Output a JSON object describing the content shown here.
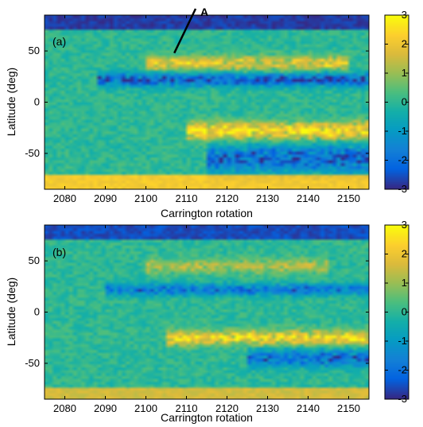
{
  "chart_data": [
    {
      "type": "heatmap",
      "panel_label": "(a)",
      "annotation": "A",
      "xlabel": "Carrington rotation",
      "ylabel": "Latitude (deg)",
      "xlim": [
        2075,
        2155
      ],
      "ylim": [
        -85,
        85
      ],
      "x_ticks": [
        2080,
        2090,
        2100,
        2110,
        2120,
        2130,
        2140,
        2150
      ],
      "y_ticks": [
        -50,
        0,
        50
      ],
      "colorbar": {
        "min": -3,
        "max": 3,
        "ticks": [
          3,
          2,
          1,
          0,
          -1,
          -2,
          -3
        ],
        "colormap": "parula"
      },
      "annotation_point": {
        "x": 2107,
        "y": 48
      },
      "features": [
        {
          "kind": "band",
          "y0": 72,
          "y1": 85,
          "value": -2.8
        },
        {
          "kind": "band",
          "y0": -85,
          "y1": -72,
          "value": 2.2
        },
        {
          "kind": "streak",
          "x0": 2088,
          "x1": 2155,
          "yc": 22,
          "value": -2.4,
          "width": 9
        },
        {
          "kind": "streak",
          "x0": 2100,
          "x1": 2150,
          "yc": 38,
          "value": 1.8,
          "width": 10
        },
        {
          "kind": "streak",
          "x0": 2110,
          "x1": 2155,
          "yc": -28,
          "value": 2.4,
          "width": 12
        },
        {
          "kind": "streak",
          "x0": 2115,
          "x1": 2155,
          "yc": -55,
          "value": -2.2,
          "width": 18
        }
      ]
    },
    {
      "type": "heatmap",
      "panel_label": "(b)",
      "xlabel": "Carrington rotation",
      "ylabel": "Latitude (deg)",
      "xlim": [
        2075,
        2155
      ],
      "ylim": [
        -85,
        85
      ],
      "x_ticks": [
        2080,
        2090,
        2100,
        2110,
        2120,
        2130,
        2140,
        2150
      ],
      "y_ticks": [
        -50,
        0,
        50
      ],
      "colorbar": {
        "min": -3,
        "max": 3,
        "ticks": [
          3,
          2,
          1,
          0,
          -1,
          -2,
          -3
        ],
        "colormap": "parula"
      },
      "features": [
        {
          "kind": "band",
          "y0": 72,
          "y1": 85,
          "value": -2.6
        },
        {
          "kind": "band",
          "y0": -85,
          "y1": -75,
          "value": 1.6
        },
        {
          "kind": "streak",
          "x0": 2090,
          "x1": 2155,
          "yc": 22,
          "value": -1.8,
          "width": 8
        },
        {
          "kind": "streak",
          "x0": 2100,
          "x1": 2145,
          "yc": 45,
          "value": 1.2,
          "width": 10
        },
        {
          "kind": "streak",
          "x0": 2105,
          "x1": 2155,
          "yc": -25,
          "value": 2.2,
          "width": 10
        },
        {
          "kind": "streak",
          "x0": 2125,
          "x1": 2155,
          "yc": -45,
          "value": -2.0,
          "width": 12
        }
      ]
    }
  ]
}
